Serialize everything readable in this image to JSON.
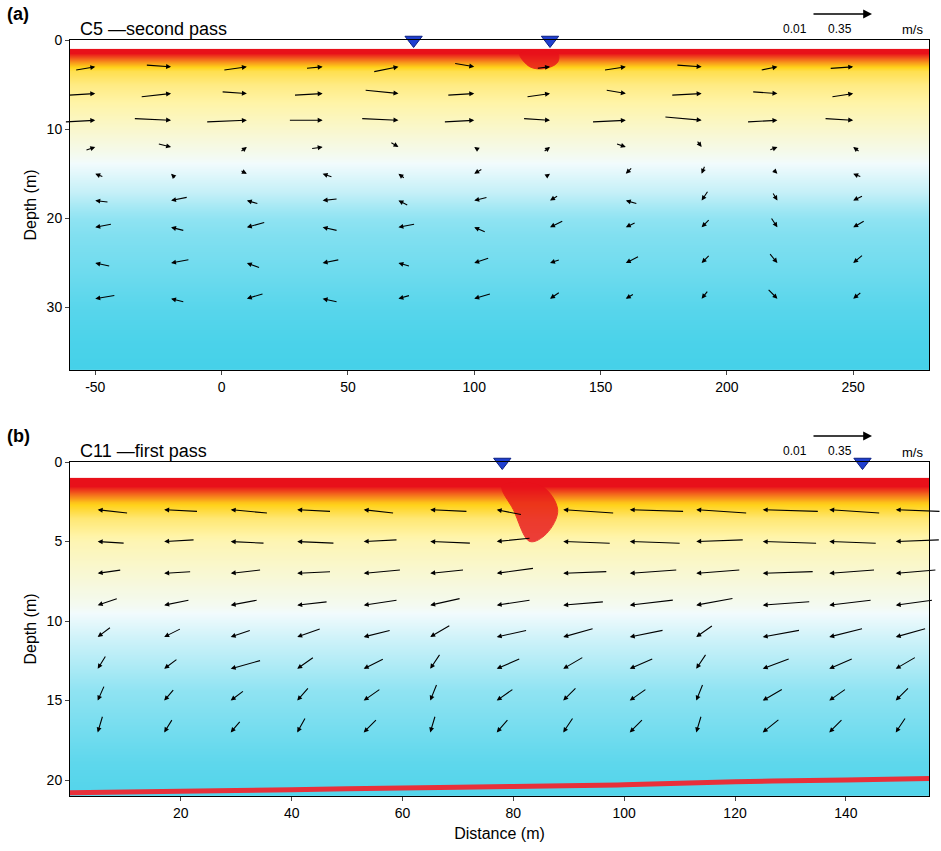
{
  "chart_data": [
    {
      "type": "quiver",
      "panel_label": "(a)",
      "title": "C5 —second pass",
      "ylabel": "Depth (m)",
      "xlim": [
        -60,
        280
      ],
      "xticks": [
        -50,
        0,
        50,
        100,
        150,
        200,
        250
      ],
      "ylim": [
        37,
        0
      ],
      "yticks": [
        0,
        10,
        20,
        30
      ],
      "grid": false,
      "scale": {
        "values": [
          0.01,
          0.35
        ],
        "unit": "m/s"
      },
      "stations": {
        "x": [
          76,
          130
        ],
        "color": "#1f3fd0",
        "marker": "triangle-down"
      },
      "backscatter": {
        "depth": [
          1.5,
          2.5,
          3.5,
          5,
          7,
          9,
          11,
          13,
          15,
          17,
          19,
          22,
          26,
          30,
          34,
          37
        ],
        "values": [
          1.0,
          0.85,
          0.72,
          0.66,
          0.62,
          0.58,
          0.54,
          0.5,
          0.45,
          0.4,
          0.33,
          0.25,
          0.18,
          0.1,
          0.05,
          0.03
        ]
      },
      "plume": {
        "x": [
          118,
          122,
          128,
          133,
          133,
          118
        ],
        "depth": [
          1.5,
          3,
          3.2,
          2.5,
          1.5,
          1.5
        ],
        "color": "#e8101a"
      },
      "vectors": {
        "x": [
          -50,
          -20,
          10,
          40,
          70,
          100,
          130,
          160,
          190,
          220,
          250
        ],
        "depth": [
          3,
          6,
          9,
          12,
          15,
          18,
          21,
          25,
          29
        ],
        "u": [
          [
            0.12,
            0.15,
            0.14,
            0.1,
            0.15,
            0.12,
            0.08,
            0.13,
            0.15,
            0.1,
            0.14
          ],
          [
            0.16,
            0.18,
            0.15,
            0.17,
            0.2,
            0.16,
            0.14,
            0.12,
            0.18,
            0.15,
            0.13
          ],
          [
            0.18,
            0.22,
            0.24,
            0.2,
            0.22,
            0.18,
            0.16,
            0.2,
            0.22,
            0.18,
            0.17
          ],
          [
            0.06,
            0.08,
            0.04,
            0.07,
            0.05,
            -0.03,
            0.04,
            0.06,
            0.03,
            0.05,
            -0.04
          ],
          [
            -0.05,
            -0.03,
            0.04,
            -0.06,
            -0.04,
            -0.05,
            0.03,
            -0.04,
            -0.02,
            0.03,
            -0.05
          ],
          [
            -0.08,
            -0.1,
            -0.07,
            -0.09,
            -0.06,
            -0.08,
            -0.05,
            -0.07,
            -0.04,
            0.03,
            -0.06
          ],
          [
            -0.1,
            -0.08,
            -0.11,
            -0.09,
            -0.1,
            -0.07,
            -0.08,
            -0.06,
            -0.05,
            0.04,
            -0.07
          ],
          [
            -0.09,
            -0.11,
            -0.08,
            -0.1,
            -0.07,
            -0.09,
            -0.06,
            -0.08,
            -0.05,
            0.05,
            -0.06
          ],
          [
            -0.12,
            -0.08,
            -0.1,
            -0.09,
            -0.07,
            -0.1,
            -0.06,
            -0.05,
            -0.04,
            0.06,
            -0.05
          ]
        ],
        "w": [
          [
            0.02,
            -0.01,
            0.02,
            0.01,
            0.03,
            -0.02,
            0.01,
            0.02,
            -0.01,
            0.02,
            0.01
          ],
          [
            0.01,
            0.02,
            -0.01,
            0.01,
            -0.02,
            0.01,
            0.02,
            -0.02,
            0.01,
            -0.01,
            0.02
          ],
          [
            0.01,
            -0.01,
            0.01,
            0,
            -0.01,
            0.01,
            -0.01,
            0.01,
            -0.02,
            0.01,
            -0.01
          ],
          [
            0.02,
            -0.02,
            0.03,
            0.01,
            -0.03,
            0.02,
            0.03,
            -0.02,
            -0.04,
            0.02,
            0.03
          ],
          [
            0.02,
            0.03,
            -0.02,
            0.02,
            0.03,
            -0.03,
            0.02,
            -0.04,
            -0.05,
            -0.03,
            0.02
          ],
          [
            0.01,
            -0.02,
            0.02,
            -0.01,
            0.03,
            -0.02,
            -0.03,
            0.02,
            -0.06,
            -0.05,
            -0.03
          ],
          [
            -0.02,
            0.02,
            -0.03,
            0.02,
            -0.02,
            0.03,
            -0.04,
            -0.03,
            -0.05,
            -0.06,
            -0.04
          ],
          [
            0.02,
            -0.02,
            0.03,
            -0.02,
            0.02,
            -0.03,
            -0.02,
            -0.04,
            -0.05,
            -0.06,
            -0.05
          ],
          [
            -0.02,
            0.02,
            -0.03,
            0.02,
            -0.02,
            -0.03,
            -0.04,
            -0.03,
            -0.05,
            -0.06,
            -0.04
          ]
        ]
      }
    },
    {
      "type": "quiver",
      "panel_label": "(b)",
      "title": "C11 —first pass",
      "xlabel": "Distance (m)",
      "ylabel": "Depth (m)",
      "xlim": [
        0,
        155
      ],
      "xticks": [
        20,
        40,
        60,
        80,
        100,
        120,
        140
      ],
      "ylim": [
        21,
        0
      ],
      "yticks": [
        0,
        5,
        10,
        15,
        20
      ],
      "grid": false,
      "scale": {
        "values": [
          0.01,
          0.35
        ],
        "unit": "m/s"
      },
      "stations": {
        "x": [
          78,
          143
        ],
        "color": "#1f3fd0",
        "marker": "triangle-down"
      },
      "backscatter": {
        "depth": [
          1.5,
          2.5,
          3.5,
          5,
          7,
          9,
          11,
          13,
          15,
          17,
          19,
          21
        ],
        "values": [
          1.0,
          0.8,
          0.68,
          0.6,
          0.55,
          0.5,
          0.42,
          0.35,
          0.28,
          0.2,
          0.12,
          0.08
        ]
      },
      "plume": {
        "x": [
          78,
          80,
          83,
          86,
          88,
          85,
          78
        ],
        "depth": [
          1.5,
          3,
          5,
          4.5,
          3,
          1.5,
          1.5
        ],
        "color": "#e8101a"
      },
      "seabed": {
        "x": [
          0,
          20,
          40,
          60,
          80,
          100,
          120,
          140,
          155
        ],
        "depth": [
          20.8,
          20.7,
          20.6,
          20.5,
          20.4,
          20.3,
          20.1,
          20.0,
          19.9
        ],
        "color": "#e8303a"
      },
      "vectors": {
        "x": [
          5,
          17,
          29,
          41,
          53,
          65,
          77,
          89,
          101,
          113,
          125,
          137,
          149
        ],
        "depth": [
          3,
          5,
          7,
          9,
          11,
          13,
          15,
          17
        ],
        "u": [
          [
            -0.18,
            -0.2,
            -0.22,
            -0.2,
            -0.18,
            -0.22,
            -0.15,
            -0.3,
            -0.32,
            -0.3,
            -0.33,
            -0.3,
            -0.28
          ],
          [
            -0.16,
            -0.18,
            -0.2,
            -0.22,
            -0.2,
            -0.24,
            -0.2,
            -0.28,
            -0.3,
            -0.28,
            -0.32,
            -0.28,
            -0.26
          ],
          [
            -0.14,
            -0.16,
            -0.18,
            -0.2,
            -0.22,
            -0.2,
            -0.22,
            -0.26,
            -0.28,
            -0.26,
            -0.3,
            -0.27,
            -0.24
          ],
          [
            -0.12,
            -0.15,
            -0.16,
            -0.18,
            -0.2,
            -0.18,
            -0.2,
            -0.24,
            -0.26,
            -0.22,
            -0.28,
            -0.25,
            -0.22
          ],
          [
            -0.08,
            -0.1,
            -0.12,
            -0.14,
            -0.16,
            -0.12,
            -0.18,
            -0.18,
            -0.2,
            -0.1,
            -0.22,
            -0.2,
            -0.18
          ],
          [
            -0.05,
            -0.08,
            -0.18,
            -0.1,
            -0.12,
            -0.06,
            -0.14,
            -0.12,
            -0.14,
            -0.06,
            -0.16,
            -0.14,
            -0.12
          ],
          [
            -0.04,
            -0.06,
            -0.08,
            -0.07,
            -0.1,
            -0.04,
            -0.1,
            -0.08,
            -0.1,
            -0.04,
            -0.12,
            -0.1,
            -0.08
          ],
          [
            -0.03,
            -0.05,
            -0.06,
            -0.05,
            -0.08,
            -0.03,
            -0.07,
            -0.06,
            -0.08,
            -0.03,
            -0.1,
            -0.08,
            -0.06
          ]
        ],
        "w": [
          [
            0.02,
            0.01,
            0.02,
            0.01,
            0.02,
            0.01,
            0.03,
            0.02,
            0.01,
            0.02,
            0.01,
            0.02,
            0.01
          ],
          [
            0.01,
            -0.01,
            0.01,
            0.01,
            -0.01,
            0.01,
            -0.02,
            0.01,
            0.01,
            -0.01,
            0.01,
            0.01,
            -0.01
          ],
          [
            -0.02,
            -0.01,
            -0.02,
            -0.01,
            -0.02,
            -0.02,
            -0.03,
            -0.01,
            -0.02,
            -0.02,
            -0.01,
            -0.02,
            -0.02
          ],
          [
            -0.04,
            -0.03,
            -0.03,
            -0.02,
            -0.03,
            -0.04,
            -0.03,
            -0.02,
            -0.03,
            -0.04,
            -0.02,
            -0.03,
            -0.03
          ],
          [
            -0.06,
            -0.05,
            -0.04,
            -0.05,
            -0.04,
            -0.07,
            -0.04,
            -0.05,
            -0.04,
            -0.07,
            -0.04,
            -0.05,
            -0.05
          ],
          [
            -0.08,
            -0.06,
            -0.05,
            -0.07,
            -0.06,
            -0.09,
            -0.06,
            -0.07,
            -0.06,
            -0.09,
            -0.06,
            -0.06,
            -0.07
          ],
          [
            -0.09,
            -0.07,
            -0.06,
            -0.08,
            -0.07,
            -0.1,
            -0.07,
            -0.08,
            -0.07,
            -0.1,
            -0.07,
            -0.07,
            -0.08
          ],
          [
            -0.1,
            -0.08,
            -0.07,
            -0.09,
            -0.08,
            -0.1,
            -0.08,
            -0.09,
            -0.08,
            -0.1,
            -0.08,
            -0.08,
            -0.09
          ]
        ]
      }
    }
  ]
}
